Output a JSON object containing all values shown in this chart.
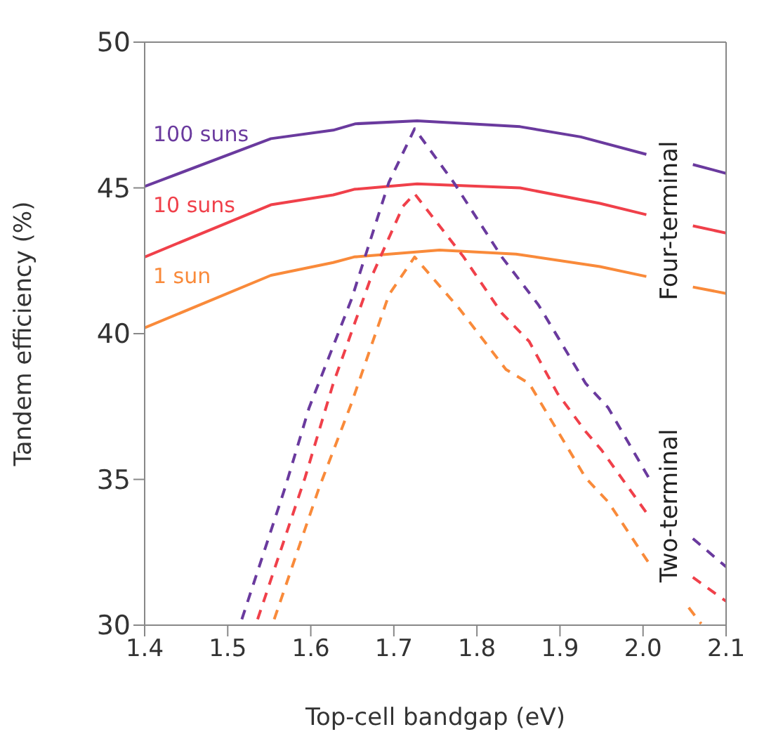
{
  "chart_data": {
    "type": "line",
    "xlabel": "Top-cell bandgap (eV)",
    "ylabel": "Tandem efficiency (%)",
    "xlim": [
      1.4,
      2.1
    ],
    "xticks": [
      1.4,
      1.5,
      1.6,
      1.7,
      1.8,
      1.9,
      {
        "value": 2,
        "label": "2.0"
      },
      2.1
    ],
    "ylim": [
      30,
      50
    ],
    "yticks": [
      30,
      35,
      40,
      45,
      50
    ],
    "grid": false,
    "marker": "none",
    "annotations": [
      "Four-terminal",
      "Two-terminal"
    ],
    "series": [
      {
        "name": "100 suns",
        "color": "#6a3a9e",
        "line_style": "solid",
        "x": [
          1.4,
          1.552,
          1.627,
          1.654,
          1.728,
          1.852,
          1.925,
          2.004,
          2.03,
          2.06,
          2.1
        ],
        "values": [
          45.05,
          46.69,
          46.98,
          47.2,
          47.3,
          47.1,
          46.75,
          46.15,
          null,
          45.8,
          45.5
        ]
      },
      {
        "name": "10 suns",
        "color": "#f0404a",
        "line_style": "solid",
        "x": [
          1.4,
          1.552,
          1.627,
          1.652,
          1.728,
          1.852,
          1.948,
          2.004,
          2.03,
          2.06,
          2.1
        ],
        "values": [
          42.63,
          44.42,
          44.76,
          44.95,
          45.14,
          45.0,
          44.47,
          44.08,
          null,
          43.7,
          43.45
        ]
      },
      {
        "name": "1 sun",
        "color": "#f98a3a",
        "line_style": "solid",
        "x": [
          1.4,
          1.552,
          1.627,
          1.652,
          1.755,
          1.847,
          1.948,
          2.004,
          2.03,
          2.06,
          2.1
        ],
        "values": [
          40.2,
          42.0,
          42.44,
          42.63,
          42.87,
          42.73,
          42.3,
          41.96,
          null,
          41.6,
          41.38
        ]
      },
      {
        "color": "#6a3a9e",
        "line_style": "dashed",
        "x": [
          1.517,
          1.569,
          1.598,
          1.649,
          1.694,
          1.725,
          1.772,
          1.83,
          1.874,
          1.931,
          1.958,
          2.007,
          2.03,
          2.06,
          2.1
        ],
        "values": [
          30.2,
          34.71,
          37.46,
          41.18,
          45.19,
          47.03,
          45.19,
          42.63,
          40.99,
          38.29,
          37.46,
          35.05,
          null,
          32.97,
          32.0
        ]
      },
      {
        "color": "#f0404a",
        "line_style": "dashed",
        "x": [
          1.536,
          1.593,
          1.627,
          1.671,
          1.711,
          1.725,
          1.784,
          1.83,
          1.863,
          1.897,
          1.931,
          1.95,
          2.007,
          2.03,
          2.06,
          2.1
        ],
        "values": [
          30.2,
          35.05,
          38.29,
          41.81,
          44.37,
          44.8,
          42.63,
          40.7,
          39.73,
          37.95,
          36.64,
          36.01,
          33.74,
          null,
          31.64,
          30.82
        ]
      },
      {
        "color": "#f98a3a",
        "line_style": "dashed",
        "x": [
          1.556,
          1.61,
          1.649,
          1.694,
          1.725,
          1.779,
          1.835,
          1.863,
          1.931,
          1.958,
          2.007,
          2.03,
          2.055,
          2.07
        ],
        "values": [
          30.2,
          34.71,
          37.61,
          41.33,
          42.63,
          40.85,
          38.77,
          38.29,
          35.05,
          34.23,
          32.13,
          null,
          30.6,
          30.05
        ]
      }
    ]
  }
}
